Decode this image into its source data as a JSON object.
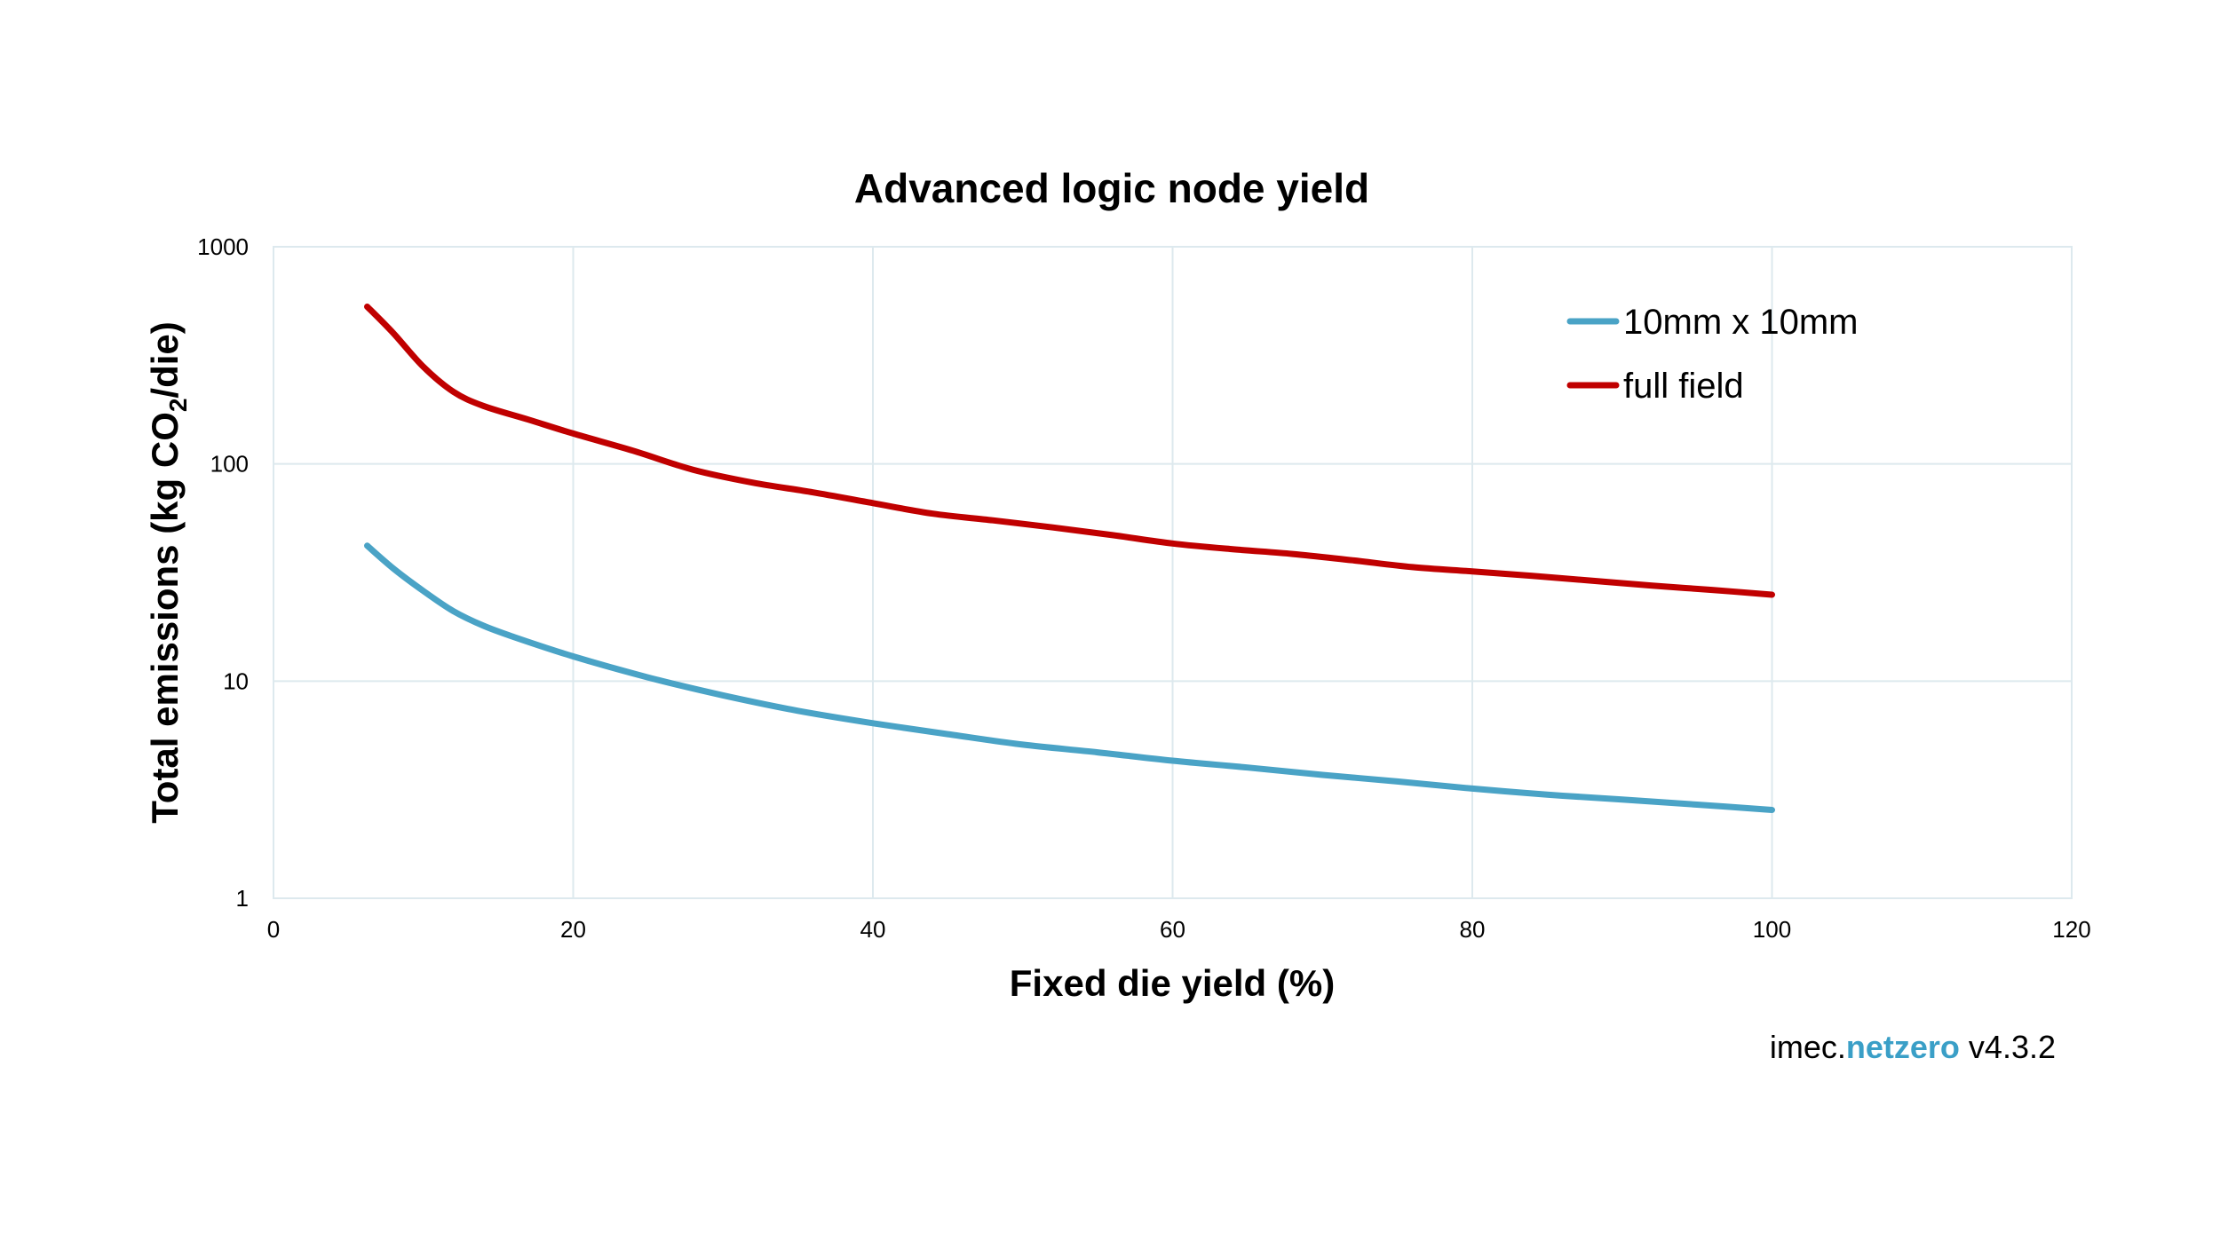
{
  "chart_data": {
    "type": "line",
    "title": "Advanced logic node yield",
    "xlabel": "Fixed die yield (%)",
    "ylabel_main": "Total emissions (kg CO",
    "ylabel_sub": "2",
    "ylabel_end": "/die)",
    "xlim": [
      0,
      120
    ],
    "ylim": [
      1,
      1000
    ],
    "yscale": "log",
    "x_ticks": [
      0,
      20,
      40,
      60,
      80,
      100,
      120
    ],
    "y_ticks": [
      1,
      10,
      100,
      1000
    ],
    "grid": true,
    "legend_position": "top-right",
    "series": [
      {
        "name": "10mm x 10mm",
        "color": "#4aa3c6",
        "x": [
          6.25,
          8,
          10,
          12,
          14,
          16,
          20,
          25,
          30,
          35,
          40,
          45,
          50,
          55,
          60,
          65,
          70,
          75,
          80,
          85,
          90,
          95,
          100
        ],
        "y": [
          42,
          33,
          26,
          21,
          18,
          16,
          13,
          10.4,
          8.6,
          7.3,
          6.4,
          5.7,
          5.1,
          4.7,
          4.3,
          4.0,
          3.7,
          3.45,
          3.2,
          3.0,
          2.85,
          2.7,
          2.55
        ]
      },
      {
        "name": "full field",
        "color": "#c00000",
        "x": [
          6.25,
          8,
          10,
          12,
          14,
          17,
          20,
          24,
          28,
          32,
          36,
          40,
          44,
          48,
          52,
          56,
          60,
          64,
          68,
          72,
          76,
          80,
          84,
          88,
          92,
          96,
          100
        ],
        "y": [
          530,
          400,
          280,
          215,
          185,
          160,
          138,
          115,
          94,
          82,
          74,
          66,
          59,
          55,
          51,
          47,
          43,
          40.5,
          38.5,
          36,
          33.5,
          32,
          30.5,
          29,
          27.5,
          26.3,
          25
        ]
      }
    ]
  },
  "watermark": {
    "prefix": "imec.",
    "accent": "netzero",
    "suffix": " v4.3.2",
    "accent_color": "#3a9fc7"
  }
}
